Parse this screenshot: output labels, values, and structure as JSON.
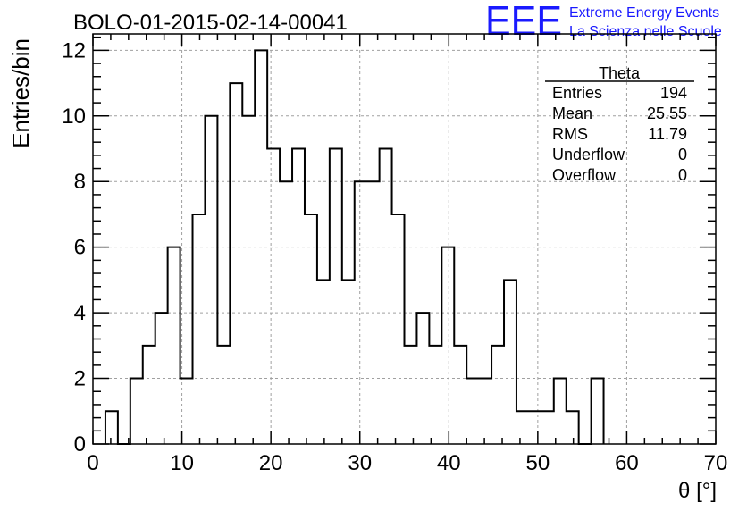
{
  "chart_data": {
    "type": "bar",
    "title": "BOLO-01-2015-02-14-00041",
    "xlabel": "θ [°]",
    "ylabel": "Entries/bin",
    "xlim": [
      0,
      70
    ],
    "ylim": [
      0,
      12.5
    ],
    "grid": true,
    "bin_width": 1.4,
    "x": [
      1.4,
      2.8,
      4.2,
      5.6,
      7.0,
      8.4,
      9.8,
      11.2,
      12.6,
      14.0,
      15.4,
      16.8,
      18.2,
      19.6,
      21.0,
      22.4,
      23.8,
      25.2,
      26.6,
      28.0,
      29.4,
      30.8,
      32.2,
      33.6,
      35.0,
      36.4,
      37.8,
      39.2,
      40.6,
      42.0,
      43.4,
      44.8,
      46.2,
      47.6,
      49.0,
      50.4,
      51.8,
      53.2,
      54.6,
      56.0
    ],
    "values": [
      1,
      0,
      2,
      3,
      4,
      6,
      2,
      7,
      10,
      3,
      11,
      10,
      12,
      9,
      8,
      9,
      7,
      5,
      9,
      5,
      8,
      8,
      9,
      7,
      3,
      4,
      3,
      6,
      3,
      2,
      2,
      3,
      5,
      1,
      1,
      1,
      2,
      1,
      0,
      2
    ],
    "x_ticks": [
      "0",
      "10",
      "20",
      "30",
      "40",
      "50",
      "60",
      "70"
    ],
    "y_ticks": [
      "0",
      "2",
      "4",
      "6",
      "8",
      "10",
      "12"
    ],
    "stats_box": {
      "title": "Theta",
      "placement": "top-right",
      "rows": [
        {
          "label": "Entries",
          "value": "194"
        },
        {
          "label": "Mean",
          "value": "25.55"
        },
        {
          "label": "RMS",
          "value": "11.79"
        },
        {
          "label": "Underflow",
          "value": "0"
        },
        {
          "label": "Overflow",
          "value": "0"
        }
      ]
    },
    "logo": {
      "text": "EEE",
      "line1": "Extreme Energy Events",
      "line2": "La Scienza nelle Scuole",
      "color": "#1a1aff"
    }
  }
}
